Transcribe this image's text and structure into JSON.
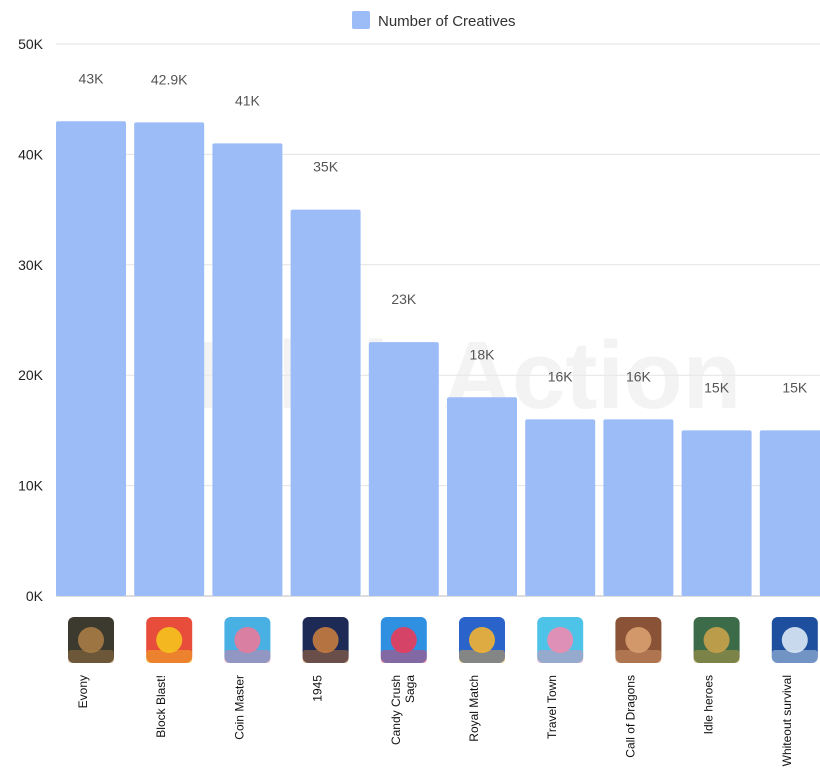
{
  "chart_data": {
    "type": "bar",
    "series": [
      {
        "name": "Number of Creatives",
        "values": [
          43000,
          42900,
          41000,
          35000,
          23000,
          18000,
          16000,
          16000,
          15000,
          15000
        ]
      }
    ],
    "categories": [
      "Evony",
      "Block Blast!",
      "Coin Master",
      "1945",
      "Candy Crush Saga",
      "Royal Match",
      "Travel Town",
      "Call of Dragons",
      "Idle heroes",
      "Whiteout survival"
    ],
    "data_labels": [
      "43K",
      "42.9K",
      "41K",
      "35K",
      "23K",
      "18K",
      "16K",
      "16K",
      "15K",
      "15K"
    ],
    "y_ticks": [
      "0K",
      "10K",
      "20K",
      "30K",
      "40K",
      "50K"
    ],
    "ylim": [
      0,
      50000
    ],
    "grid": true,
    "legend_position": "top-center",
    "watermark": "MobileAction",
    "colors": {
      "bar": "#9cbcf7",
      "grid": "#e3e3e3",
      "axis": "#bbbbbb"
    },
    "category_icons": [
      "evony-icon",
      "block-blast-icon",
      "coin-master-icon",
      "1945-icon",
      "candy-crush-icon",
      "royal-match-icon",
      "travel-town-icon",
      "call-of-dragons-icon",
      "idle-heroes-icon",
      "whiteout-survival-icon"
    ]
  }
}
